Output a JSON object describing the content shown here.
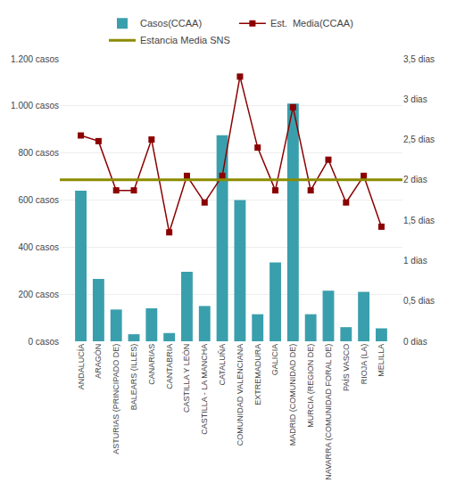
{
  "chart_data": {
    "type": "bar",
    "categories": [
      "ANDALUCÍA",
      "ARAGÓN",
      "ASTURIAS (PRINCIPADO DE)",
      "BALEARS (ILLES)",
      "CANARIAS",
      "CANTABRIA",
      "CASTILLA Y LEÓN",
      "CASTILLA - LA MANCHA",
      "CATALUÑA",
      "COMUNIDAD VALENCIANA",
      "EXTREMADURA",
      "GALICIA",
      "MADRID (COMUNIDAD DE)",
      "MURCIA (REGION DE)",
      "NAVARRA (COMUNIDAD FORAL DE)",
      "PAÍS VASCO",
      "RIOJA (LA)",
      "MELILLA"
    ],
    "series": [
      {
        "name": "Casos(CCAA)",
        "type": "bar",
        "color": "#3a9fac",
        "values": [
          640,
          265,
          135,
          30,
          140,
          35,
          295,
          150,
          875,
          600,
          115,
          335,
          1010,
          115,
          215,
          60,
          210,
          55
        ]
      },
      {
        "name": "Est.  Media(CCAA)",
        "type": "line",
        "axis": "y2",
        "color": "#8B0000",
        "marker": "square",
        "values": [
          2.55,
          2.48,
          1.87,
          1.87,
          2.5,
          1.35,
          2.05,
          1.72,
          2.05,
          3.28,
          2.4,
          1.87,
          2.9,
          1.87,
          2.25,
          1.72,
          2.05,
          1.42
        ]
      }
    ],
    "reference_lines": [
      {
        "name": "Estancia Media SNS",
        "axis": "y2",
        "value": 2.0,
        "color": "#8B8B00"
      }
    ],
    "ylim": [
      0,
      1200
    ],
    "yticks": [
      {
        "value": 0,
        "label": "0 casos"
      },
      {
        "value": 200,
        "label": "200 casos"
      },
      {
        "value": 400,
        "label": "400 casos"
      },
      {
        "value": 600,
        "label": "600 casos"
      },
      {
        "value": 800,
        "label": "800 casos"
      },
      {
        "value": 1000,
        "label": "1.000 casos"
      },
      {
        "value": 1200,
        "label": "1.200 casos"
      }
    ],
    "y2lim": [
      0,
      3.5
    ],
    "y2ticks": [
      {
        "value": 0,
        "label": "0 dias"
      },
      {
        "value": 0.5,
        "label": "0,5 dias"
      },
      {
        "value": 1.0,
        "label": "1 dias"
      },
      {
        "value": 1.5,
        "label": "1,5 dias"
      },
      {
        "value": 2.0,
        "label": "2 dias"
      },
      {
        "value": 2.5,
        "label": "2,5 dias"
      },
      {
        "value": 3.0,
        "label": "3 dias"
      },
      {
        "value": 3.5,
        "label": "3,5 dias"
      }
    ],
    "grid": true,
    "legend": "top"
  }
}
